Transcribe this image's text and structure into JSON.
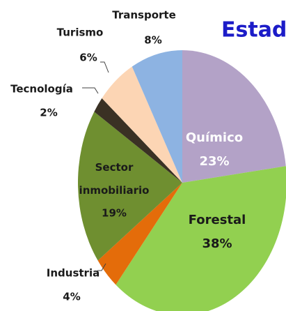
{
  "chart_data": {
    "type": "pie",
    "title": "Estado",
    "categories": [
      "Químico",
      "Forestal",
      "Industria",
      "Sector inmobiliario",
      "Tecnología",
      "Turismo",
      "Transporte"
    ],
    "values": [
      23,
      38,
      4,
      19,
      2,
      6,
      8
    ],
    "value_labels": [
      "23%",
      "38%",
      "4%",
      "19%",
      "2%",
      "6%",
      "8%"
    ],
    "colors": [
      "#b3a2c7",
      "#92d050",
      "#e46c0a",
      "#6f8f30",
      "#3a3124",
      "#fcd5b4",
      "#8db3e2"
    ]
  }
}
